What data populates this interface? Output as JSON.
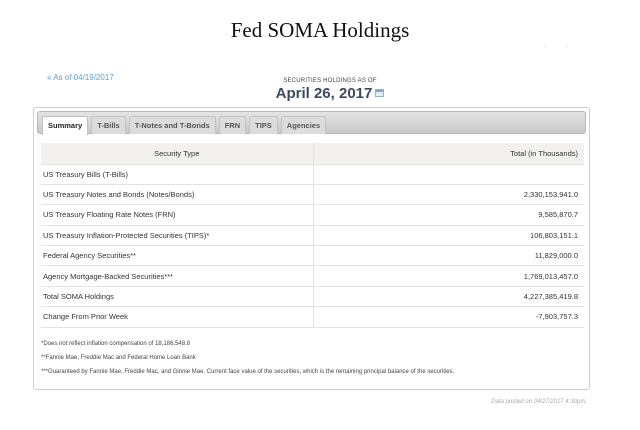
{
  "page": {
    "title": "Fed  SOMA Holdings"
  },
  "nav": {
    "prev_link": "« As of 04/19/2017"
  },
  "holdings_header": {
    "label": "SECURITIES HOLDINGS AS OF",
    "date": "April 26, 2017",
    "calendar_icon": "calendar-icon"
  },
  "tabs": [
    {
      "label": "Summary",
      "active": true
    },
    {
      "label": "T-Bills",
      "active": false
    },
    {
      "label": "T-Notes and T-Bonds",
      "active": false
    },
    {
      "label": "FRN",
      "active": false
    },
    {
      "label": "TIPS",
      "active": false
    },
    {
      "label": "Agencies",
      "active": false
    }
  ],
  "table": {
    "columns": [
      "Security Type",
      "Total (in Thousands)"
    ],
    "rows": [
      {
        "type": "US Treasury Bills (T-Bills)",
        "total": ""
      },
      {
        "type": "US Treasury Notes and Bonds (Notes/Bonds)",
        "total": "2,330,153,941.0"
      },
      {
        "type": "US Treasury Floating Rate Notes (FRN)",
        "total": "9,585,870.7"
      },
      {
        "type": "US Treasury Inflation-Protected Securities (TIPS)*",
        "total": "106,803,151.1"
      },
      {
        "type": "Federal Agency Securities**",
        "total": "11,829,000.0"
      },
      {
        "type": "Agency Mortgage-Backed Securities***",
        "total": "1,769,013,457.0"
      },
      {
        "type": "Total SOMA Holdings",
        "total": "4,227,385,419.8"
      },
      {
        "type": "Change From Prior Week",
        "total": "-7,903,757.3"
      }
    ]
  },
  "footnotes": [
    "*Does not reflect inflation compensation of 18,186,548.8",
    "**Fannie Mae, Freddie Mac and Federal Home Loan Bank",
    "***Guaranteed by Fannie Mae, Freddie Mac, and Ginnie Mae. Current face value of the securities, which is the remaining principal balance of the securities."
  ],
  "posted": "Data posted on 04/27/2017 4:30pm.",
  "colors": {
    "link": "#5a9bd5",
    "date_heading": "#3c4a5a",
    "header_row_bg": "#f3f1ee",
    "tabbar_bg": "#d4d4d4"
  }
}
